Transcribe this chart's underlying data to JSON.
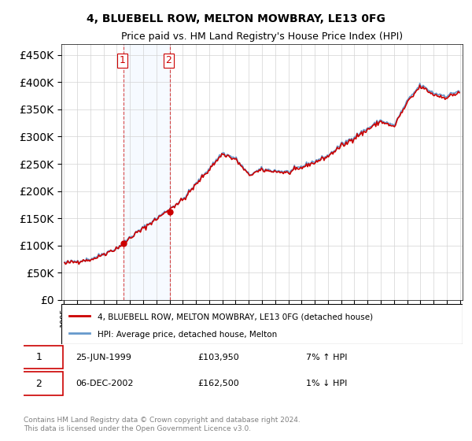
{
  "title": "4, BLUEBELL ROW, MELTON MOWBRAY, LE13 0FG",
  "subtitle": "Price paid vs. HM Land Registry's House Price Index (HPI)",
  "legend_line1": "4, BLUEBELL ROW, MELTON MOWBRAY, LE13 0FG (detached house)",
  "legend_line2": "HPI: Average price, detached house, Melton",
  "red_color": "#cc0000",
  "blue_color": "#6699cc",
  "shading_color": "#ddeeff",
  "purchase1_date": "25-JUN-1999",
  "purchase1_price": "£103,950",
  "purchase1_hpi": "7% ↑ HPI",
  "purchase2_date": "06-DEC-2002",
  "purchase2_price": "£162,500",
  "purchase2_hpi": "1% ↓ HPI",
  "footnote": "Contains HM Land Registry data © Crown copyright and database right 2024.\nThis data is licensed under the Open Government Licence v3.0.",
  "ylim_min": 0,
  "ylim_max": 470000,
  "year_start": 1995,
  "year_end": 2025
}
